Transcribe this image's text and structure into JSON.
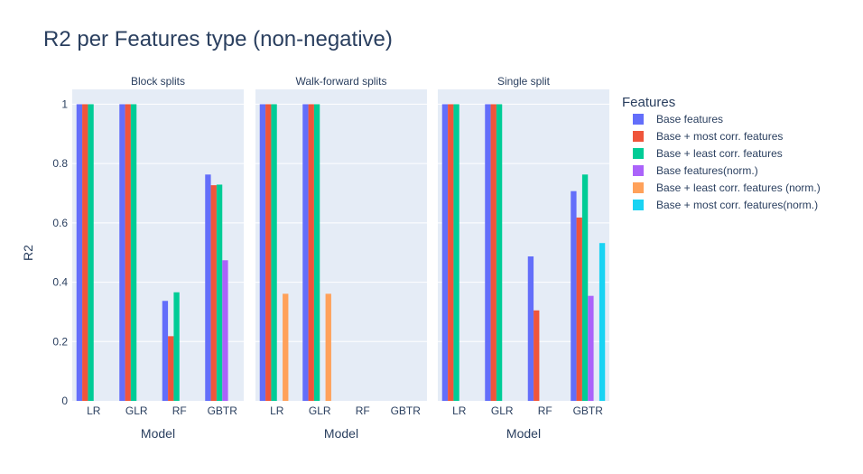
{
  "chart_data": {
    "type": "bar",
    "title": "R2 per Features type (non-negative)",
    "ylabel": "R2",
    "xlabel": "Model",
    "ylim": [
      0,
      1.05
    ],
    "yticks": [
      0,
      0.2,
      0.4,
      0.6,
      0.8,
      1
    ],
    "ytick_labels": [
      "0",
      "0.2",
      "0.4",
      "0.6",
      "0.8",
      "1"
    ],
    "categories": [
      "LR",
      "GLR",
      "RF",
      "GBTR"
    ],
    "grid": true,
    "legend": {
      "title": "Features",
      "placement": "right",
      "items": [
        {
          "name": "Base features",
          "color": "#636efa"
        },
        {
          "name": "Base + most corr. features",
          "color": "#ef553b"
        },
        {
          "name": "Base + least corr. features",
          "color": "#00cc96"
        },
        {
          "name": "Base features(norm.)",
          "color": "#ab63fa"
        },
        {
          "name": "Base + least corr. features (norm.)",
          "color": "#ffa15a"
        },
        {
          "name": "Base + most corr. features(norm.)",
          "color": "#19d3f3"
        }
      ]
    },
    "panels": [
      {
        "title": "Block splits",
        "series": [
          {
            "name": "Base features",
            "values": [
              1,
              1,
              0.337,
              0.763
            ]
          },
          {
            "name": "Base + most corr. features",
            "values": [
              1,
              1,
              0.218,
              0.727
            ]
          },
          {
            "name": "Base + least corr. features",
            "values": [
              1,
              1,
              0.366,
              0.729
            ]
          },
          {
            "name": "Base features(norm.)",
            "values": [
              null,
              null,
              null,
              0.474
            ]
          },
          {
            "name": "Base + least corr. features (norm.)",
            "values": [
              null,
              null,
              null,
              null
            ]
          },
          {
            "name": "Base + most corr. features(norm.)",
            "values": [
              null,
              null,
              null,
              null
            ]
          }
        ]
      },
      {
        "title": "Walk-forward splits",
        "series": [
          {
            "name": "Base features",
            "values": [
              1,
              1,
              null,
              null
            ]
          },
          {
            "name": "Base + most corr. features",
            "values": [
              1,
              1,
              null,
              null
            ]
          },
          {
            "name": "Base + least corr. features",
            "values": [
              1,
              1,
              null,
              null
            ]
          },
          {
            "name": "Base features(norm.)",
            "values": [
              null,
              null,
              null,
              null
            ]
          },
          {
            "name": "Base + least corr. features (norm.)",
            "values": [
              0.361,
              0.361,
              null,
              null
            ]
          },
          {
            "name": "Base + most corr. features(norm.)",
            "values": [
              null,
              null,
              null,
              null
            ]
          }
        ]
      },
      {
        "title": "Single split",
        "series": [
          {
            "name": "Base features",
            "values": [
              1,
              1,
              0.487,
              0.707
            ]
          },
          {
            "name": "Base + most corr. features",
            "values": [
              1,
              1,
              0.305,
              0.618
            ]
          },
          {
            "name": "Base + least corr. features",
            "values": [
              1,
              1,
              null,
              0.763
            ]
          },
          {
            "name": "Base features(norm.)",
            "values": [
              null,
              null,
              null,
              0.354
            ]
          },
          {
            "name": "Base + least corr. features (norm.)",
            "values": [
              null,
              null,
              null,
              null
            ]
          },
          {
            "name": "Base + most corr. features(norm.)",
            "values": [
              null,
              null,
              null,
              0.532
            ]
          }
        ]
      }
    ]
  }
}
